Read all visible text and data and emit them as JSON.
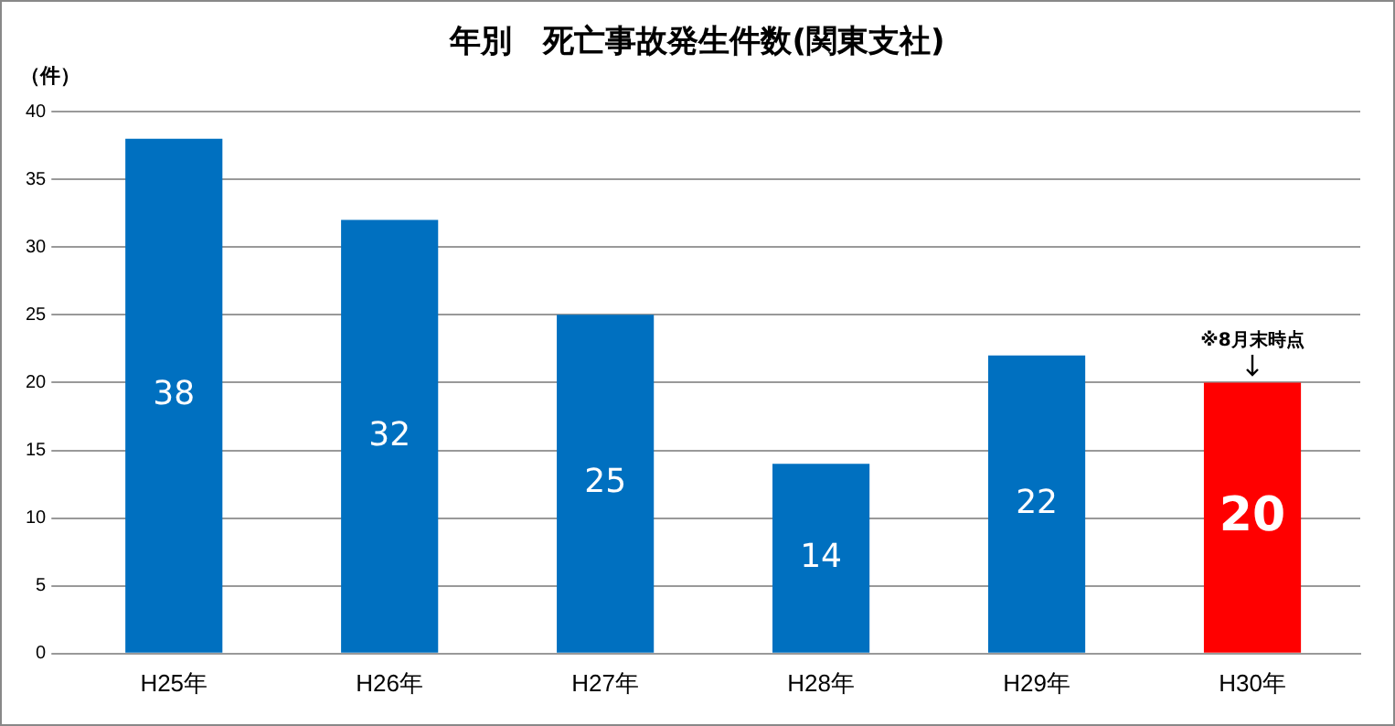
{
  "chart_data": {
    "type": "bar",
    "title": "年別　死亡事故発生件数(関東支社)",
    "ylabel": "（件）",
    "categories": [
      "H25年",
      "H26年",
      "H27年",
      "H28年",
      "H29年",
      "H30年"
    ],
    "values": [
      38,
      32,
      25,
      14,
      22,
      20
    ],
    "colors": [
      "#0070c0",
      "#0070c0",
      "#0070c0",
      "#0070c0",
      "#0070c0",
      "#ff0000"
    ],
    "ylim": [
      0,
      40
    ],
    "yticks": [
      0,
      5,
      10,
      15,
      20,
      25,
      30,
      35,
      40
    ],
    "grid": "y",
    "data_labels": true,
    "annotations": [
      {
        "text": "※8月末時点",
        "x": "H30年",
        "y": 20
      }
    ]
  }
}
